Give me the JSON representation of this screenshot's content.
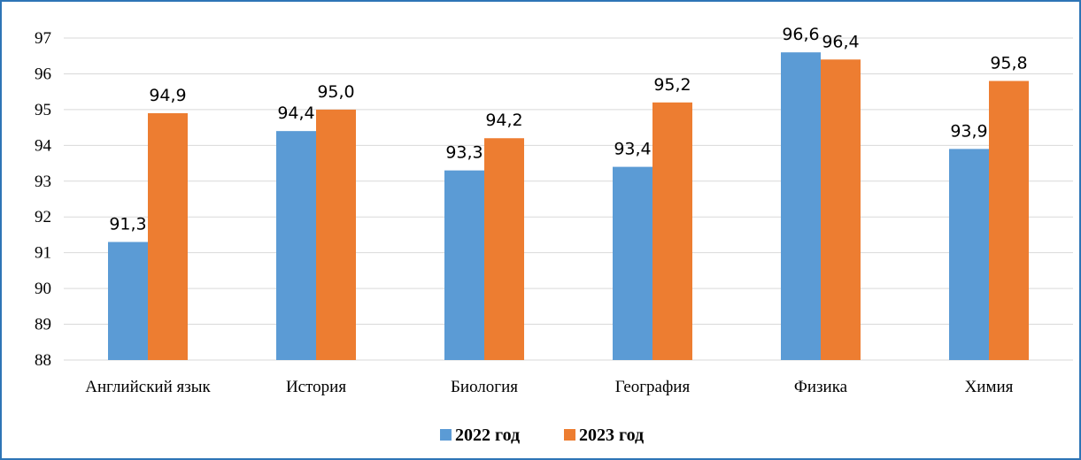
{
  "chart_data": {
    "type": "bar",
    "categories": [
      "Английский язык",
      "История",
      "Биология",
      "География",
      "Физика",
      "Химия"
    ],
    "series": [
      {
        "name": "2022 год",
        "color": "#5B9BD5",
        "values": [
          91.3,
          94.4,
          93.3,
          93.4,
          96.6,
          93.9
        ],
        "labels": [
          "91,3",
          "94,4",
          "93,3",
          "93,4",
          "96,6",
          "93,9"
        ]
      },
      {
        "name": "2023 год",
        "color": "#ED7D31",
        "values": [
          94.9,
          95.0,
          94.2,
          95.2,
          96.4,
          95.8
        ],
        "labels": [
          "94,9",
          "95,0",
          "94,2",
          "95,2",
          "96,4",
          "95,8"
        ]
      }
    ],
    "ylim": [
      88,
      97
    ],
    "yticks": [
      88,
      89,
      90,
      91,
      92,
      93,
      94,
      95,
      96,
      97
    ],
    "grid": true,
    "legend": "bottom"
  }
}
